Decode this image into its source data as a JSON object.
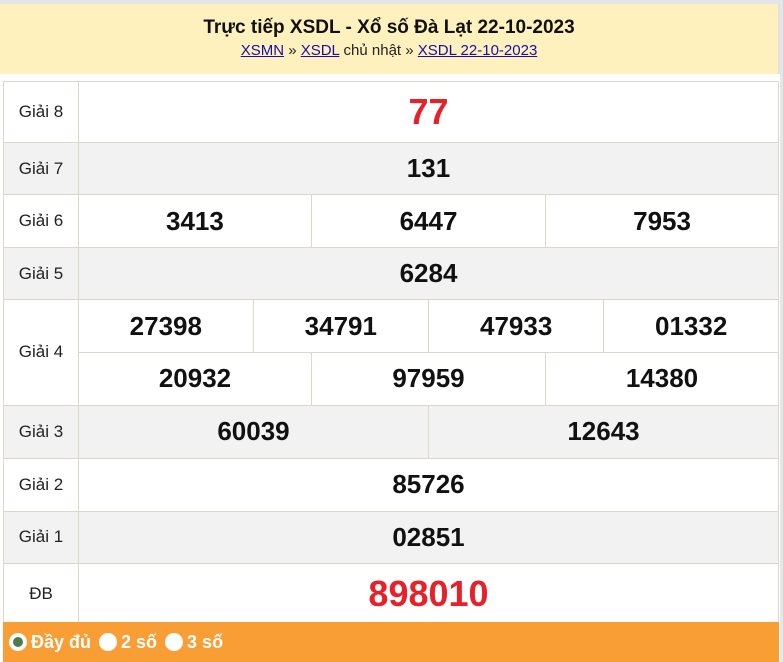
{
  "header": {
    "title": "Trực tiếp XSDL - Xổ số Đà Lạt 22-10-2023",
    "crumb1": "XSMN",
    "sep1": "»",
    "crumb2": "XSDL",
    "day": "chủ nhật",
    "sep2": "»",
    "crumb3": "XSDL 22-10-2023"
  },
  "results": {
    "g8": {
      "label": "Giải 8",
      "nums": [
        "77"
      ]
    },
    "g7": {
      "label": "Giải 7",
      "nums": [
        "131"
      ]
    },
    "g6": {
      "label": "Giải 6",
      "nums": [
        "3413",
        "6447",
        "7953"
      ]
    },
    "g5": {
      "label": "Giải 5",
      "nums": [
        "6284"
      ]
    },
    "g4": {
      "label": "Giải 4",
      "nums": [
        "27398",
        "34791",
        "47933",
        "01332",
        "20932",
        "97959",
        "14380"
      ]
    },
    "g3": {
      "label": "Giải 3",
      "nums": [
        "60039",
        "12643"
      ]
    },
    "g2": {
      "label": "Giải 2",
      "nums": [
        "85726"
      ]
    },
    "g1": {
      "label": "Giải 1",
      "nums": [
        "02851"
      ]
    },
    "db": {
      "label": "ĐB",
      "nums": [
        "898010"
      ]
    }
  },
  "footer": {
    "options": [
      "Đầy đủ",
      "2 số",
      "3 số"
    ],
    "selected": "Đầy đủ"
  },
  "colors": {
    "accent_red": "#e8202a",
    "header_bg": "#fef1be",
    "footer_bg": "#f99d35"
  }
}
